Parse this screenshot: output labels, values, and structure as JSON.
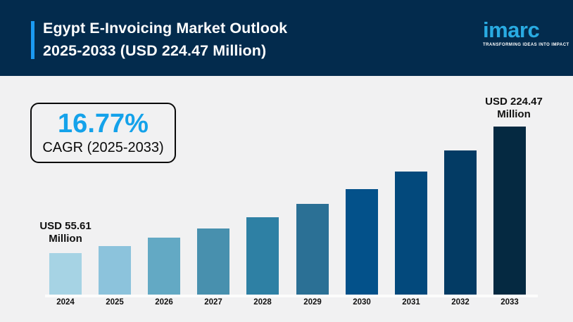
{
  "header": {
    "title_line1": "Egypt E-Invoicing Market Outlook",
    "title_line2": "2025-2033 (USD 224.47 Million)",
    "logo_text": "imarc",
    "logo_tagline": "TRANSFORMING IDEAS INTO IMPACT"
  },
  "cagr_box": {
    "value": "16.77%",
    "label": "CAGR (2025-2033)"
  },
  "annotations": {
    "first_bar_line1": "USD 55.61",
    "first_bar_line2": "Million",
    "last_bar_line1": "USD 224.47",
    "last_bar_line2": "Million"
  },
  "colors": {
    "header_bg": "#032b4d",
    "accent_bar": "#1b9af2",
    "logo_blue": "#29abe2",
    "cagr_value_blue": "#14a2ea",
    "page_bg": "#f1f1f2"
  },
  "chart_data": {
    "type": "bar",
    "title": "Egypt E-Invoicing Market Outlook 2025-2033 (USD 224.47 Million)",
    "unit": "USD Million",
    "categories": [
      "2024",
      "2025",
      "2026",
      "2027",
      "2028",
      "2029",
      "2030",
      "2031",
      "2032",
      "2033"
    ],
    "values": [
      55.61,
      64.94,
      75.83,
      88.55,
      103.4,
      120.74,
      140.99,
      164.63,
      192.24,
      224.47
    ],
    "labeled_points": {
      "2024": "USD 55.61 Million",
      "2033": "USD 224.47 Million"
    },
    "cagr": "16.77% (2025-2033)",
    "bar_colors": [
      "#a6d3e4",
      "#8cc3dc",
      "#63a9c4",
      "#4890ae",
      "#2e80a4",
      "#2b7095",
      "#03518a",
      "#03497c",
      "#033b64",
      "#052941"
    ],
    "ylim": [
      0,
      224.47
    ],
    "gridlines": false,
    "y_axis_visible": false,
    "legend": "none"
  }
}
